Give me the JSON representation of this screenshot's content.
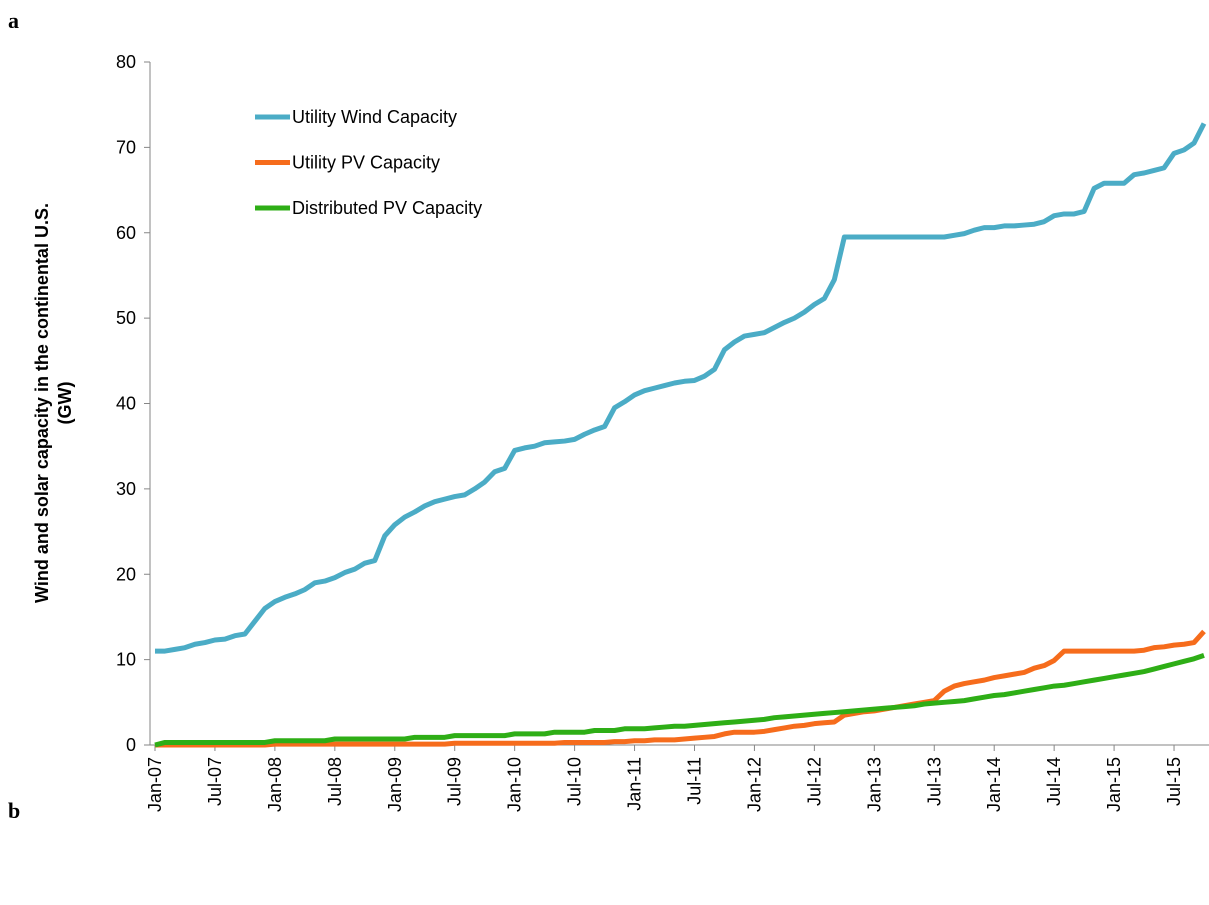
{
  "labels": [
    "a",
    "b"
  ],
  "chart_data": {
    "type": "line",
    "ylabel": [
      "Wind and solar capacity in the continental U.S.",
      "(GW)"
    ],
    "categories": [
      "Jan-07",
      null,
      null,
      null,
      null,
      null,
      "Jul-07",
      null,
      null,
      null,
      null,
      null,
      "Jan-08",
      null,
      null,
      null,
      null,
      null,
      "Jul-08",
      null,
      null,
      null,
      null,
      null,
      "Jan-09",
      null,
      null,
      null,
      null,
      null,
      "Jul-09",
      null,
      null,
      null,
      null,
      null,
      "Jan-10",
      null,
      null,
      null,
      null,
      null,
      "Jul-10",
      null,
      null,
      null,
      null,
      null,
      "Jan-11",
      null,
      null,
      null,
      null,
      null,
      "Jul-11",
      null,
      null,
      null,
      null,
      null,
      "Jan-12",
      null,
      null,
      null,
      null,
      null,
      "Jul-12",
      null,
      null,
      null,
      null,
      null,
      "Jan-13",
      null,
      null,
      null,
      null,
      null,
      "Jul-13",
      null,
      null,
      null,
      null,
      null,
      "Jan-14",
      null,
      null,
      null,
      null,
      null,
      "Jul-14",
      null,
      null,
      null,
      null,
      null,
      "Jan-15",
      null,
      null,
      null,
      null,
      null,
      "Jul-15",
      null,
      null,
      null
    ],
    "ylim": [
      0,
      80
    ],
    "yticks": [
      0,
      10,
      20,
      30,
      40,
      50,
      60,
      70,
      80
    ],
    "grid": false,
    "legend": "upper left",
    "series": [
      {
        "name": "Utility Wind Capacity",
        "color": "#4bacc6",
        "values": [
          11,
          11,
          11.2,
          11.4,
          11.8,
          12,
          12.3,
          12.4,
          12.8,
          13,
          14.5,
          16,
          16.8,
          17.3,
          17.7,
          18.2,
          19,
          19.2,
          19.6,
          20.2,
          20.6,
          21.3,
          21.6,
          24.5,
          25.8,
          26.7,
          27.3,
          28,
          28.5,
          28.8,
          29.1,
          29.3,
          30,
          30.8,
          32,
          32.4,
          34.5,
          34.8,
          35,
          35.4,
          35.5,
          35.6,
          35.8,
          36.4,
          36.9,
          37.3,
          39.5,
          40.2,
          41,
          41.5,
          41.8,
          42.1,
          42.4,
          42.6,
          42.7,
          43.2,
          44,
          46.3,
          47.2,
          47.9,
          48.1,
          48.3,
          48.9,
          49.5,
          50,
          50.7,
          51.6,
          52.3,
          54.5,
          59.5,
          59.5,
          59.5,
          59.5,
          59.5,
          59.5,
          59.5,
          59.5,
          59.5,
          59.5,
          59.5,
          59.7,
          59.9,
          60.3,
          60.6,
          60.6,
          60.8,
          60.8,
          60.9,
          61,
          61.3,
          62,
          62.2,
          62.2,
          62.5,
          65.2,
          65.8,
          65.8,
          65.8,
          66.8,
          67,
          67.3,
          67.6,
          69.3,
          69.7,
          70.5,
          72.8
        ]
      },
      {
        "name": "Utility PV Capacity",
        "color": "#f66c1c",
        "values": [
          0,
          0,
          0,
          0,
          0,
          0,
          0,
          0,
          0,
          0,
          0,
          0,
          0.1,
          0.1,
          0.1,
          0.1,
          0.1,
          0.1,
          0.1,
          0.1,
          0.1,
          0.1,
          0.1,
          0.1,
          0.1,
          0.1,
          0.1,
          0.1,
          0.1,
          0.1,
          0.2,
          0.2,
          0.2,
          0.2,
          0.2,
          0.2,
          0.2,
          0.2,
          0.2,
          0.2,
          0.2,
          0.3,
          0.3,
          0.3,
          0.3,
          0.3,
          0.4,
          0.4,
          0.5,
          0.5,
          0.6,
          0.6,
          0.6,
          0.7,
          0.8,
          0.9,
          1,
          1.3,
          1.5,
          1.5,
          1.5,
          1.6,
          1.8,
          2,
          2.2,
          2.3,
          2.5,
          2.6,
          2.7,
          3.5,
          3.7,
          3.9,
          4,
          4.2,
          4.4,
          4.6,
          4.8,
          5,
          5.2,
          6.3,
          6.9,
          7.2,
          7.4,
          7.6,
          7.9,
          8.1,
          8.3,
          8.5,
          9,
          9.3,
          9.9,
          11,
          11,
          11,
          11,
          11,
          11,
          11,
          11,
          11.1,
          11.4,
          11.5,
          11.7,
          11.8,
          12,
          13.3
        ]
      },
      {
        "name": "Distributed PV Capacity",
        "color": "#2eae16",
        "values": [
          0,
          0.3,
          0.3,
          0.3,
          0.3,
          0.3,
          0.3,
          0.3,
          0.3,
          0.3,
          0.3,
          0.3,
          0.5,
          0.5,
          0.5,
          0.5,
          0.5,
          0.5,
          0.7,
          0.7,
          0.7,
          0.7,
          0.7,
          0.7,
          0.7,
          0.7,
          0.9,
          0.9,
          0.9,
          0.9,
          1.1,
          1.1,
          1.1,
          1.1,
          1.1,
          1.1,
          1.3,
          1.3,
          1.3,
          1.3,
          1.5,
          1.5,
          1.5,
          1.5,
          1.7,
          1.7,
          1.7,
          1.9,
          1.9,
          1.9,
          2,
          2.1,
          2.2,
          2.2,
          2.3,
          2.4,
          2.5,
          2.6,
          2.7,
          2.8,
          2.9,
          3,
          3.2,
          3.3,
          3.4,
          3.5,
          3.6,
          3.7,
          3.8,
          3.9,
          4,
          4.1,
          4.2,
          4.3,
          4.4,
          4.5,
          4.6,
          4.8,
          4.9,
          5,
          5.1,
          5.2,
          5.4,
          5.6,
          5.8,
          5.9,
          6.1,
          6.3,
          6.5,
          6.7,
          6.9,
          7,
          7.2,
          7.4,
          7.6,
          7.8,
          8,
          8.2,
          8.4,
          8.6,
          8.9,
          9.2,
          9.5,
          9.8,
          10.1,
          10.5
        ]
      }
    ]
  }
}
